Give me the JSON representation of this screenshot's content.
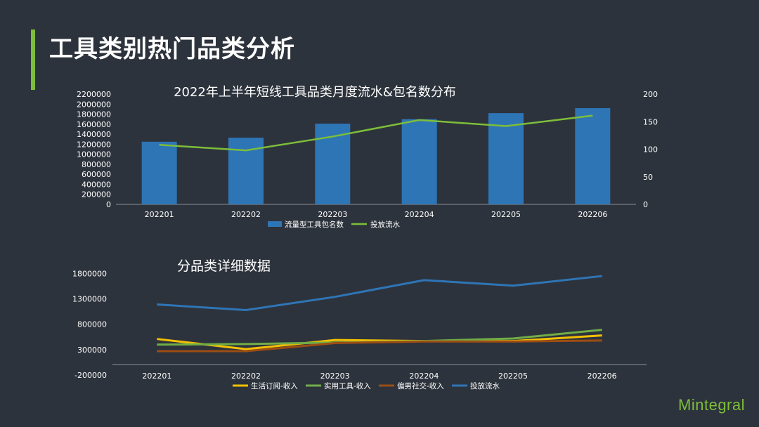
{
  "page": {
    "title": "工具类别热门品类分析",
    "logo_text": "Mintegral"
  },
  "colors": {
    "background": "#2d333c",
    "accent": "#7dbe3a",
    "bar": "#2e75b6",
    "line_green": "#7dbe3a",
    "yellow": "#f5c000",
    "green2": "#70ad47",
    "brown": "#9c4d14",
    "blue_line": "#2e75b6"
  },
  "chart_data": [
    {
      "type": "bar",
      "title": "2022年上半年短线工具品类月度流水&包名数分布",
      "categories": [
        "202201",
        "202202",
        "202203",
        "202204",
        "202205",
        "202206"
      ],
      "y_ticks": [
        "0",
        "200000",
        "400000",
        "600000",
        "800000",
        "1000000",
        "1200000",
        "1400000",
        "1600000",
        "1800000",
        "2000000",
        "2200000"
      ],
      "ylim": [
        0,
        2200000
      ],
      "y2_ticks": [
        "0",
        "50",
        "100",
        "150",
        "200"
      ],
      "y2lim": [
        0,
        200
      ],
      "series": [
        {
          "name": "流量型工具包名数",
          "type": "bar",
          "axis": "left",
          "values": [
            1250000,
            1330000,
            1610000,
            1700000,
            1820000,
            1920000
          ]
        },
        {
          "name": "投放流水",
          "type": "line",
          "axis": "right",
          "values": [
            108,
            98,
            123,
            153,
            142,
            161
          ]
        }
      ],
      "legend": "bottom"
    },
    {
      "type": "line",
      "title": "分品类详细数据",
      "categories": [
        "202201",
        "202202",
        "202203",
        "202204",
        "202205",
        "202206"
      ],
      "y_ticks": [
        "-200000",
        "300000",
        "800000",
        "1300000",
        "1800000"
      ],
      "ylim": [
        -200000,
        2000000
      ],
      "series": [
        {
          "name": "生活订阅-收入",
          "values": [
            510000,
            310000,
            490000,
            470000,
            470000,
            580000
          ]
        },
        {
          "name": "实用工具-收入",
          "values": [
            400000,
            410000,
            440000,
            470000,
            520000,
            690000
          ]
        },
        {
          "name": "偏男社交-收入",
          "values": [
            270000,
            270000,
            430000,
            460000,
            460000,
            480000
          ]
        },
        {
          "name": "投放流水",
          "values": [
            1190000,
            1080000,
            1340000,
            1670000,
            1560000,
            1750000
          ]
        }
      ],
      "legend": "bottom"
    }
  ]
}
